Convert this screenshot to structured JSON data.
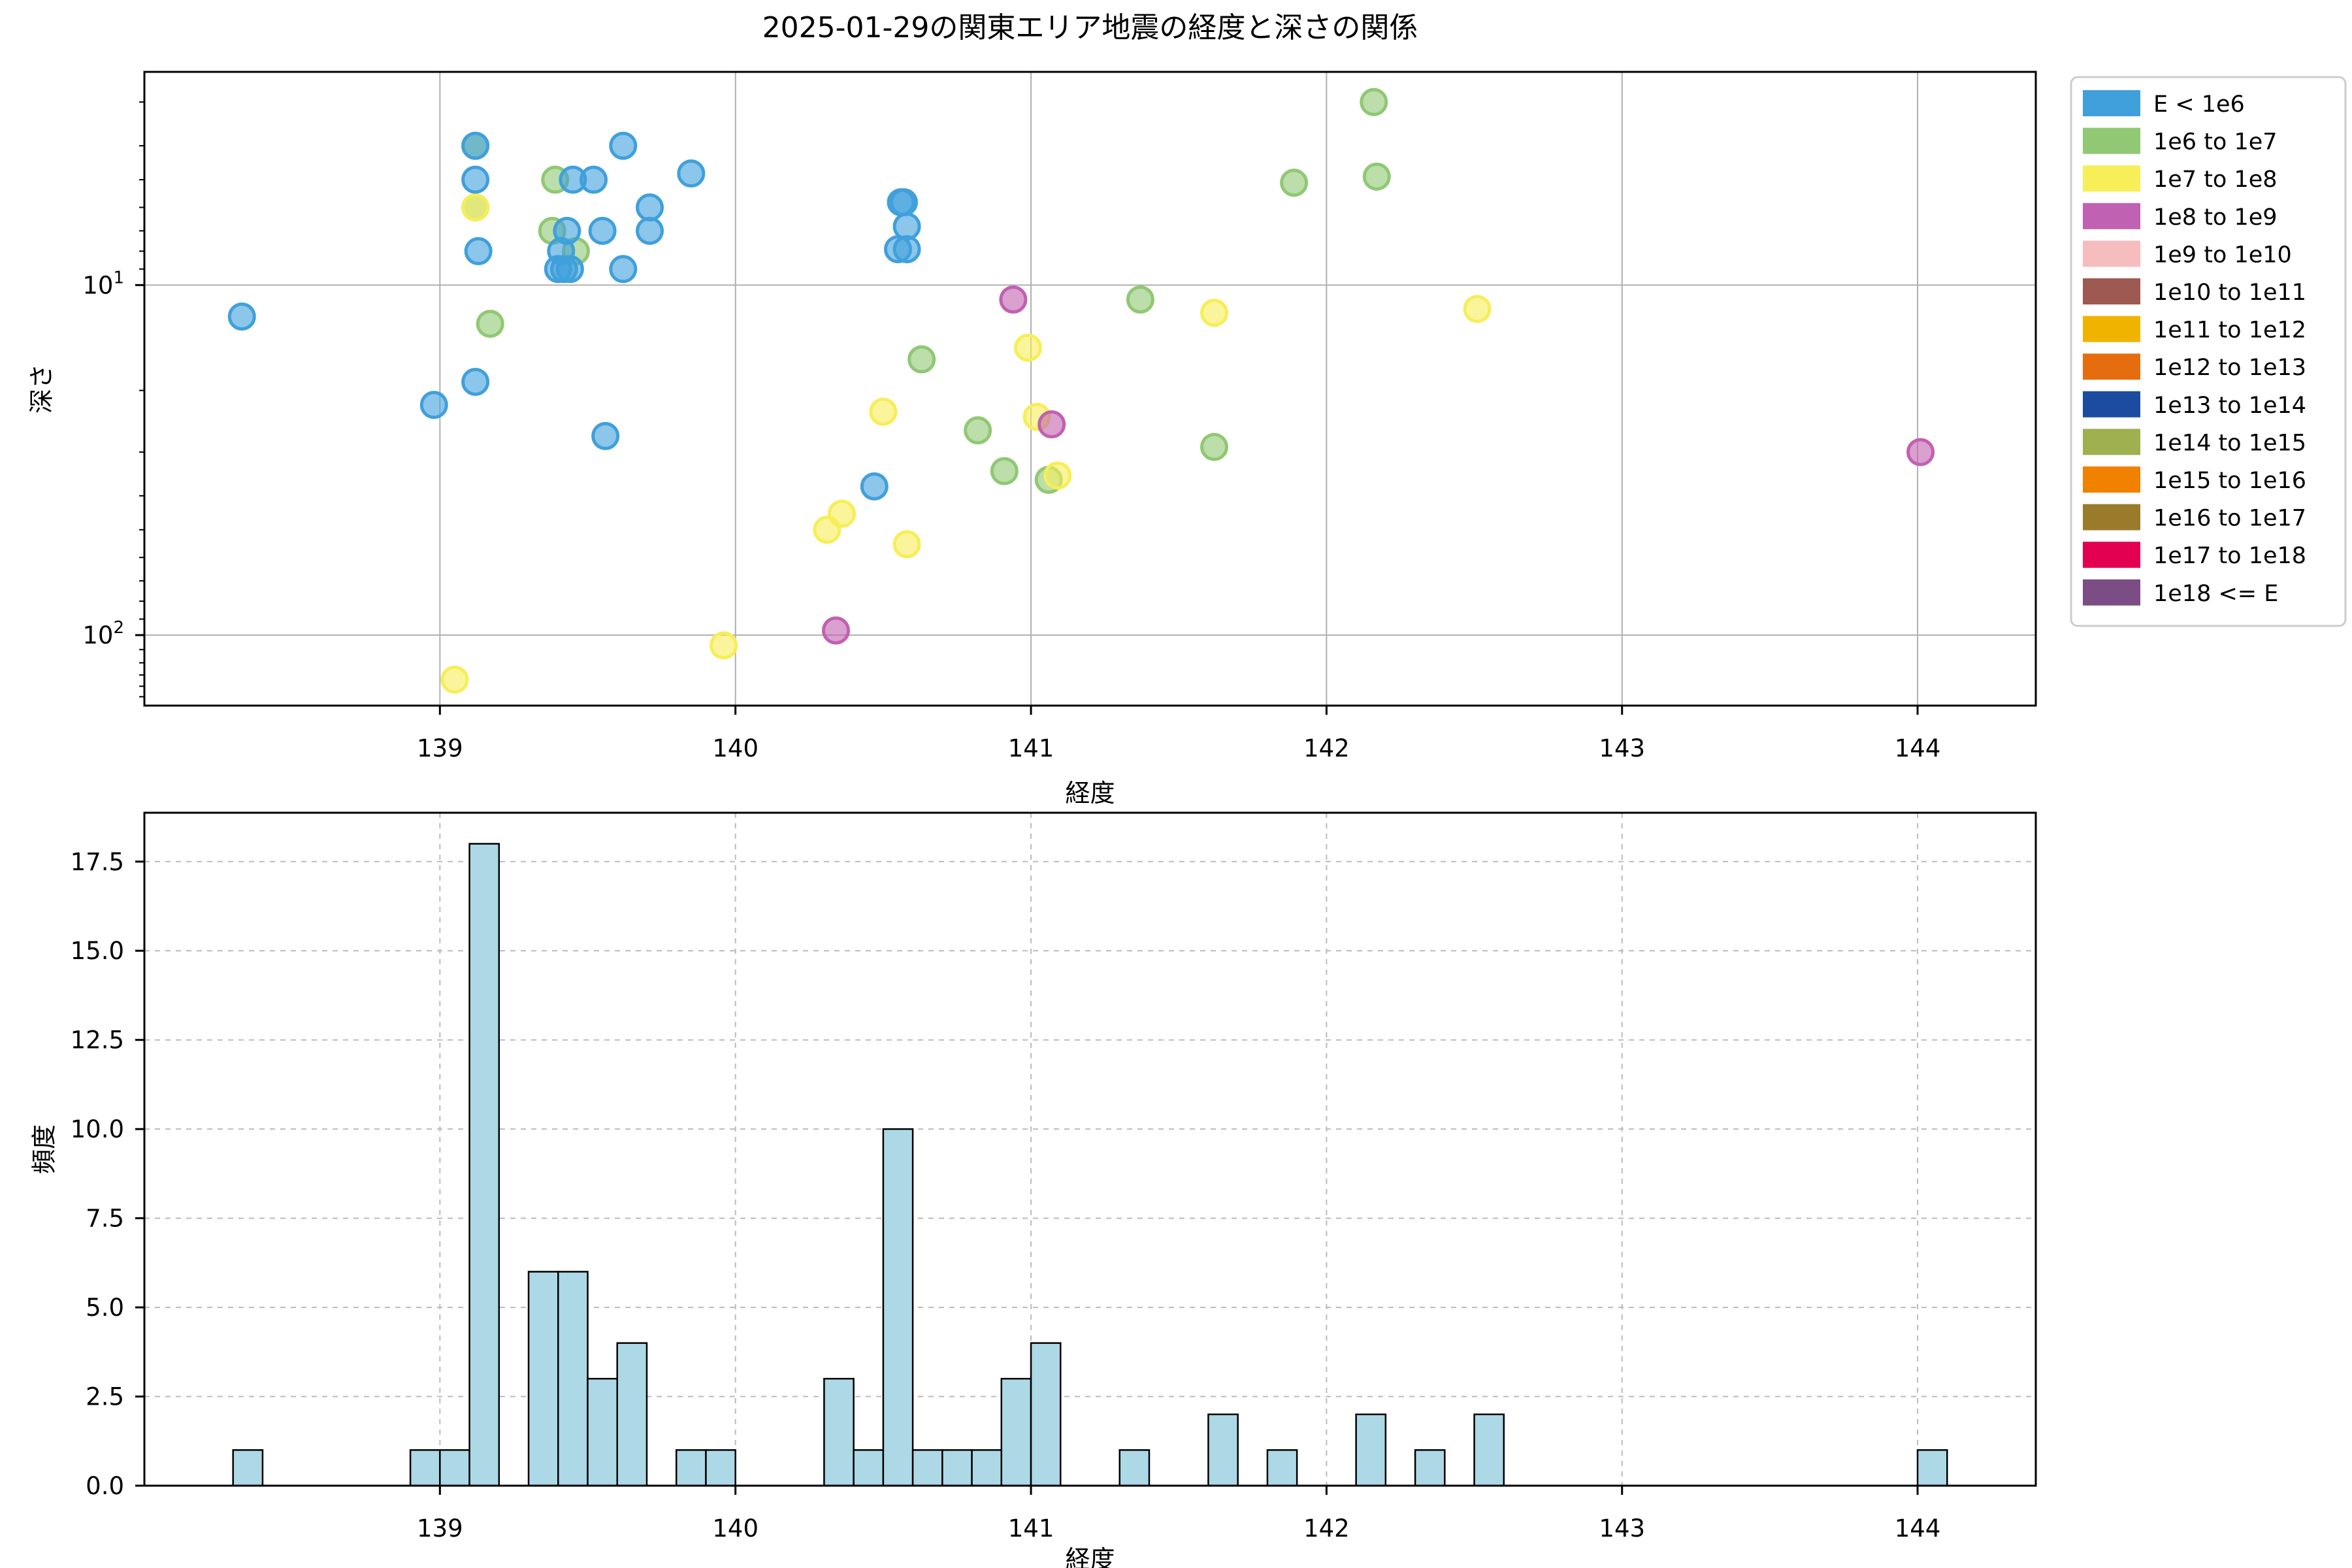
{
  "title": "2025-01-29の関東エリア地震の経度と深さの関係",
  "chart_data": [
    {
      "type": "scatter",
      "title": "2025-01-29の関東エリア地震の経度と深さの関係",
      "xlabel": "経度",
      "ylabel": "深さ",
      "xlim": [
        138.0,
        144.4
      ],
      "ylim": [
        2.46,
        159
      ],
      "yscale": "log",
      "y_inverted": true,
      "grid": "solid",
      "xticks": [
        139,
        140,
        141,
        142,
        143,
        144
      ],
      "yticks": [
        {
          "value": 10,
          "base": "10",
          "exp": "1"
        },
        {
          "value": 100,
          "base": "10",
          "exp": "2"
        }
      ],
      "yminor": [
        3,
        4,
        5,
        6,
        7,
        8,
        9,
        20,
        30,
        40,
        50,
        60,
        70,
        80,
        90,
        110,
        120,
        130,
        140,
        150
      ],
      "legend_position": "outside-right",
      "series": [
        {
          "name": "1e6 to 1e7",
          "color": "#90C873",
          "points": [
            [
              139.12,
              4.0
            ],
            [
              139.39,
              5.0
            ],
            [
              139.38,
              7.0
            ],
            [
              139.46,
              8.0
            ],
            [
              139.17,
              12.9
            ],
            [
              139.12,
              6.0
            ],
            [
              140.63,
              16.3
            ],
            [
              140.82,
              26
            ],
            [
              140.91,
              34
            ],
            [
              141.37,
              11
            ],
            [
              141.62,
              29
            ],
            [
              141.06,
              36
            ],
            [
              141.89,
              5.1
            ],
            [
              142.16,
              3.0
            ],
            [
              142.17,
              4.9
            ]
          ]
        },
        {
          "name": "1e7 to 1e8",
          "color": "#F7EE58",
          "points": [
            [
              139.12,
              6.0
            ],
            [
              139.05,
              134
            ],
            [
              139.96,
              107
            ],
            [
              140.31,
              50
            ],
            [
              140.36,
              45
            ],
            [
              140.58,
              55
            ],
            [
              140.5,
              23
            ],
            [
              140.99,
              15.1
            ],
            [
              141.02,
              23.8
            ],
            [
              141.09,
              35
            ],
            [
              141.62,
              12
            ],
            [
              142.51,
              11.7
            ]
          ]
        },
        {
          "name": "E < 1e6",
          "color": "#3FA0DC",
          "points": [
            [
              138.33,
              12.3
            ],
            [
              138.98,
              22
            ],
            [
              139.12,
              4.0
            ],
            [
              139.12,
              5.0
            ],
            [
              139.13,
              8.0
            ],
            [
              139.12,
              18.9
            ],
            [
              139.45,
              5.0
            ],
            [
              139.52,
              5.0
            ],
            [
              139.62,
              4.0
            ],
            [
              139.43,
              7.0
            ],
            [
              139.55,
              7.0
            ],
            [
              139.71,
              6.0
            ],
            [
              139.71,
              7.0
            ],
            [
              139.41,
              8.0
            ],
            [
              139.4,
              9.0
            ],
            [
              139.42,
              9.0
            ],
            [
              139.44,
              9.0
            ],
            [
              139.62,
              9.0
            ],
            [
              139.85,
              4.8
            ],
            [
              139.56,
              27
            ],
            [
              140.47,
              37.6
            ],
            [
              140.56,
              5.8
            ],
            [
              140.57,
              5.8
            ],
            [
              140.58,
              6.8
            ],
            [
              140.55,
              7.9
            ],
            [
              140.58,
              7.9
            ]
          ]
        },
        {
          "name": "1e8 to 1e9",
          "color": "#C161B1",
          "points": [
            [
              140.34,
              97
            ],
            [
              140.94,
              11
            ],
            [
              141.07,
              25
            ],
            [
              144.01,
              30
            ]
          ]
        }
      ],
      "legend_entries": [
        {
          "label": "E < 1e6",
          "color": "#3FA0DC"
        },
        {
          "label": "1e6 to 1e7",
          "color": "#90C873"
        },
        {
          "label": "1e7 to 1e8",
          "color": "#F7EE58"
        },
        {
          "label": "1e8 to 1e9",
          "color": "#C161B1"
        },
        {
          "label": "1e9 to 1e10",
          "color": "#F6BDBF"
        },
        {
          "label": "1e10 to 1e11",
          "color": "#9E5A52"
        },
        {
          "label": "1e11 to 1e12",
          "color": "#F0B400"
        },
        {
          "label": "1e12 to 1e13",
          "color": "#E56D0E"
        },
        {
          "label": "1e13 to 1e14",
          "color": "#1C4C9F"
        },
        {
          "label": "1e14 to 1e15",
          "color": "#9EB04F"
        },
        {
          "label": "1e15 to 1e16",
          "color": "#F08200"
        },
        {
          "label": "1e16 to 1e17",
          "color": "#9A7B2C"
        },
        {
          "label": "1e17 to 1e18",
          "color": "#E30050"
        },
        {
          "label": "1e18 <= E",
          "color": "#7C4D85"
        }
      ]
    },
    {
      "type": "bar",
      "xlabel": "経度",
      "ylabel": "頻度",
      "xlim": [
        138.0,
        144.4
      ],
      "ylim": [
        0,
        18.87
      ],
      "grid": "dashed",
      "xticks": [
        139,
        140,
        141,
        142,
        143,
        144
      ],
      "ytick_labels": [
        "0.0",
        "2.5",
        "5.0",
        "7.5",
        "10.0",
        "12.5",
        "15.0",
        "17.5"
      ],
      "ytick_values": [
        0,
        2.5,
        5,
        7.5,
        10,
        12.5,
        15,
        17.5
      ],
      "bin_width": 0.1,
      "bar_color": "#ADD8E6",
      "bar_edge_color": "#000000",
      "bars": [
        {
          "x": 138.3,
          "count": 1
        },
        {
          "x": 138.9,
          "count": 1
        },
        {
          "x": 139.0,
          "count": 1
        },
        {
          "x": 139.1,
          "count": 18
        },
        {
          "x": 139.3,
          "count": 6
        },
        {
          "x": 139.4,
          "count": 6
        },
        {
          "x": 139.5,
          "count": 3
        },
        {
          "x": 139.6,
          "count": 4
        },
        {
          "x": 139.8,
          "count": 1
        },
        {
          "x": 139.9,
          "count": 1
        },
        {
          "x": 140.3,
          "count": 3
        },
        {
          "x": 140.4,
          "count": 1
        },
        {
          "x": 140.5,
          "count": 10
        },
        {
          "x": 140.6,
          "count": 1
        },
        {
          "x": 140.7,
          "count": 1
        },
        {
          "x": 140.8,
          "count": 1
        },
        {
          "x": 140.9,
          "count": 3
        },
        {
          "x": 141.0,
          "count": 4
        },
        {
          "x": 141.3,
          "count": 1
        },
        {
          "x": 141.6,
          "count": 2
        },
        {
          "x": 141.8,
          "count": 1
        },
        {
          "x": 142.1,
          "count": 2
        },
        {
          "x": 142.3,
          "count": 1
        },
        {
          "x": 142.5,
          "count": 2
        },
        {
          "x": 144.0,
          "count": 1
        }
      ]
    }
  ],
  "style": {
    "grid_solid_color": "#B0B0B0",
    "grid_dashed_color": "#BBBBBB",
    "spine_color": "#000000",
    "legend_border_color": "#CCCCCC",
    "marker_radius": 19
  }
}
